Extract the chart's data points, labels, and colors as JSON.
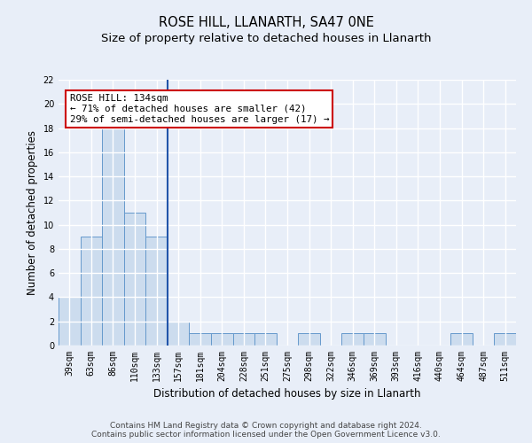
{
  "title": "ROSE HILL, LLANARTH, SA47 0NE",
  "subtitle": "Size of property relative to detached houses in Llanarth",
  "xlabel": "Distribution of detached houses by size in Llanarth",
  "ylabel": "Number of detached properties",
  "categories": [
    "39sqm",
    "63sqm",
    "86sqm",
    "110sqm",
    "133sqm",
    "157sqm",
    "181sqm",
    "204sqm",
    "228sqm",
    "251sqm",
    "275sqm",
    "298sqm",
    "322sqm",
    "346sqm",
    "369sqm",
    "393sqm",
    "416sqm",
    "440sqm",
    "464sqm",
    "487sqm",
    "511sqm"
  ],
  "values": [
    4,
    9,
    18,
    11,
    9,
    2,
    1,
    1,
    1,
    1,
    0,
    1,
    0,
    1,
    1,
    0,
    0,
    0,
    1,
    0,
    1
  ],
  "bar_color": "#ccdcee",
  "bar_edge_color": "#6699cc",
  "highlight_line_color": "#2255aa",
  "annotation_line1": "ROSE HILL: 134sqm",
  "annotation_line2": "← 71% of detached houses are smaller (42)",
  "annotation_line3": "29% of semi-detached houses are larger (17) →",
  "annotation_box_color": "#ffffff",
  "annotation_box_edge_color": "#cc0000",
  "ylim": [
    0,
    22
  ],
  "yticks": [
    0,
    2,
    4,
    6,
    8,
    10,
    12,
    14,
    16,
    18,
    20,
    22
  ],
  "background_color": "#e8eef8",
  "grid_color": "#ffffff",
  "footer_line1": "Contains HM Land Registry data © Crown copyright and database right 2024.",
  "footer_line2": "Contains public sector information licensed under the Open Government Licence v3.0.",
  "title_fontsize": 10.5,
  "subtitle_fontsize": 9.5,
  "xlabel_fontsize": 8.5,
  "ylabel_fontsize": 8.5,
  "tick_fontsize": 7,
  "footer_fontsize": 6.5,
  "annot_fontsize": 7.8
}
